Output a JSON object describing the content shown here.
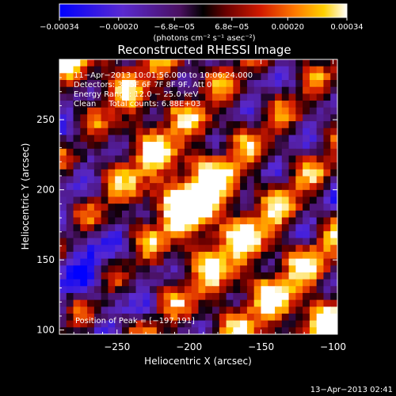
{
  "chart_data": {
    "type": "heatmap",
    "title": "Reconstructed RHESSI Image",
    "xlabel": "Heliocentric X (arcsec)",
    "ylabel": "Heliocentric Y (arcsec)",
    "xlim": [
      -290,
      -97
    ],
    "ylim": [
      97,
      293
    ],
    "x_ticks": [
      -250,
      -200,
      -150,
      -100
    ],
    "x_tick_labels": [
      "−250",
      "−200",
      "−150",
      "−100"
    ],
    "y_ticks": [
      150,
      200,
      250
    ],
    "y_tick_labels": [
      "150",
      "200",
      "250"
    ],
    "y_ticks_extra": [
      100
    ],
    "y_ticks_extra_labels": [
      "100"
    ],
    "colorbar": {
      "min": -0.00034,
      "max": 0.00034,
      "tick_values": [
        -0.00034,
        -0.0002,
        -6.8e-05,
        6.8e-05,
        0.0002,
        0.00034
      ],
      "tick_labels": [
        "−0.00034",
        "−0.00020",
        "−6.8e−05",
        "6.8e−05",
        "0.00020",
        "0.00034"
      ],
      "units": "(photons cm⁻² s⁻¹ asec⁻²)"
    },
    "annotations": {
      "time_range": "11−Apr−2013 10:01:56.000 to 10:06:24.000",
      "detectors": "Detectors: 3F 5F 6F 7F 8F 9F, Att 0",
      "energy": "Energy Range: 12.0 − 25.0 keV",
      "clean": "Clean     Total counts: 6.88E+03",
      "peak": "Position of Peak = [−197,191]"
    },
    "peak": {
      "x": -197,
      "y": 191
    },
    "grid": false
  },
  "footer": {
    "timestamp": "13−Apr−2013 02:41"
  }
}
